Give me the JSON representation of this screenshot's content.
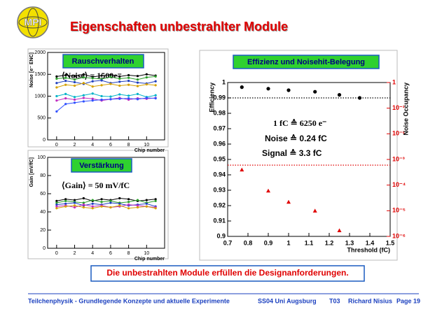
{
  "slide_title": "Eigenschaften unbestrahlter Module",
  "logo": "MPI",
  "conclusion": "Die unbestrahlten Module erfüllen die Designanforderungen.",
  "footer": {
    "course": "Teilchenphysik - Grundlegende Konzepte und aktuelle Experimente",
    "term": "SS04 Uni Augsburg",
    "topic": "T03",
    "author": "Richard Nisius",
    "page": "Page 19"
  },
  "chart_data": [
    {
      "type": "line",
      "header": "Rauschverhalten",
      "annotation": "⟨Noise⟩ = 1500e⁻",
      "xlabel": "Chip number",
      "ylabel": "Noise [e⁻ ENC]",
      "xlim": [
        -1,
        12
      ],
      "xticks": [
        0,
        2,
        4,
        6,
        8,
        10
      ],
      "ylim": [
        0,
        2000
      ],
      "yticks": [
        0,
        500,
        1000,
        1500,
        2000
      ],
      "x": [
        0,
        1,
        2,
        3,
        4,
        5,
        6,
        7,
        8,
        9,
        10,
        11
      ],
      "series": [
        {
          "color": "#000000",
          "values": [
            1450,
            1480,
            1460,
            1500,
            1440,
            1470,
            1490,
            1450,
            1480,
            1460,
            1500,
            1470
          ]
        },
        {
          "color": "#2a9d2a",
          "values": [
            1400,
            1420,
            1380,
            1430,
            1410,
            1390,
            1440,
            1400,
            1420,
            1380,
            1430,
            1450
          ]
        },
        {
          "color": "#1f3fbf",
          "values": [
            1300,
            1350,
            1320,
            1280,
            1340,
            1360,
            1300,
            1330,
            1350,
            1310,
            1290,
            1340
          ]
        },
        {
          "color": "#d4a000",
          "values": [
            1200,
            1260,
            1240,
            1300,
            1220,
            1250,
            1280,
            1240,
            1260,
            1230,
            1270,
            1250
          ]
        },
        {
          "color": "#00b3c8",
          "values": [
            1000,
            1050,
            980,
            1020,
            1060,
            1000,
            990,
            1040,
            1010,
            1050,
            980,
            1020
          ]
        },
        {
          "color": "#c02cc0",
          "values": [
            900,
            950,
            920,
            960,
            940,
            900,
            930,
            960,
            920,
            950,
            940,
            960
          ]
        },
        {
          "color": "#3050ff",
          "values": [
            650,
            820,
            850,
            880,
            900,
            920,
            930,
            940,
            950,
            930,
            960,
            950
          ]
        }
      ]
    },
    {
      "type": "line",
      "header": "Verstärkung",
      "annotation": "⟨Gain⟩ = 50 mV/fC",
      "xlabel": "Chip number",
      "ylabel": "Gain [mV/fC]",
      "xlim": [
        -1,
        12
      ],
      "xticks": [
        0,
        2,
        4,
        6,
        8,
        10
      ],
      "ylim": [
        0,
        100
      ],
      "yticks": [
        0,
        20,
        40,
        60,
        80,
        100
      ],
      "x": [
        0,
        1,
        2,
        3,
        4,
        5,
        6,
        7,
        8,
        9,
        10,
        11
      ],
      "series": [
        {
          "color": "#000000",
          "values": [
            52,
            54,
            53,
            55,
            52,
            54,
            53,
            55,
            54,
            52,
            53,
            54
          ]
        },
        {
          "color": "#2a9d2a",
          "values": [
            50,
            52,
            51,
            50,
            53,
            51,
            52,
            50,
            51,
            53,
            50,
            52
          ]
        },
        {
          "color": "#1f3fbf",
          "values": [
            48,
            49,
            50,
            47,
            49,
            48,
            50,
            49,
            47,
            48,
            49,
            46
          ]
        },
        {
          "color": "#c02cc0",
          "values": [
            46,
            47,
            45,
            48,
            46,
            47,
            45,
            46,
            48,
            47,
            46,
            45
          ]
        },
        {
          "color": "#d4a000",
          "values": [
            44,
            46,
            47,
            45,
            44,
            46,
            45,
            47,
            44,
            45,
            46,
            44
          ]
        }
      ]
    },
    {
      "type": "scatter",
      "header": "Effizienz und Noisehit-Belegung",
      "annotations": [
        "1 fC ≙ 6250 e⁻",
        "Noise ≙ 0.24 fC",
        "Signal ≙ 3.3 fC"
      ],
      "xlabel": "Threshold (fC)",
      "ylabel": "Efficiency",
      "y2label": "Noise Occupancy",
      "xlim": [
        0.7,
        1.5
      ],
      "xticks": [
        0.7,
        0.8,
        0.9,
        1,
        1.1,
        1.2,
        1.3,
        1.4,
        1.5
      ],
      "ylim": [
        0.9,
        1
      ],
      "yticks": [
        0.9,
        0.91,
        0.92,
        0.93,
        0.94,
        0.95,
        0.96,
        0.97,
        0.98,
        0.99,
        1
      ],
      "y2lim": [
        1e-06,
        1
      ],
      "y2log": true,
      "y2ticks": [
        1,
        {
          "value": 0.1,
          "label": "10⁻¹"
        },
        {
          "value": 0.01,
          "label": "10⁻²"
        },
        {
          "value": 0.001,
          "label": "10⁻³"
        },
        {
          "value": 0.0001,
          "label": "10⁻⁴"
        },
        {
          "value": 1e-05,
          "label": "10⁻⁵"
        },
        {
          "value": 1e-06,
          "label": "10⁻⁶"
        }
      ],
      "hlines": [
        {
          "axis": "y",
          "value": 0.99,
          "color": "#000000"
        },
        {
          "axis": "y2",
          "value": 0.0006,
          "color": "#e00000"
        }
      ],
      "series": [
        {
          "color": "#000000",
          "marker": "circle",
          "x": [
            0.77,
            0.9,
            1.0,
            1.13,
            1.25,
            1.35
          ],
          "values": [
            0.997,
            0.996,
            0.995,
            0.994,
            0.992,
            0.99
          ]
        },
        {
          "color": "#e00000",
          "marker": "triangle",
          "axis": "y2",
          "x": [
            0.77,
            0.9,
            1.0,
            1.13,
            1.25
          ],
          "values": [
            0.0004,
            6e-05,
            2.2e-05,
            1e-05,
            1.7e-06
          ]
        }
      ]
    }
  ]
}
